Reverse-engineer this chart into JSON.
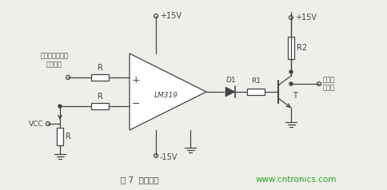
{
  "bg_color": "#f0eeea",
  "line_color": "#444444",
  "green_color": "#22aa22",
  "title": "图 7  过流保护",
  "website": "www.cntronics.com",
  "label_hall": "霏尔电流传感器\n采样信号",
  "label_vcc": "VCC",
  "label_lm319": "LM319",
  "label_plus15_top": "+15V",
  "label_minus15": "-15V",
  "label_plus15_tr": "+15V",
  "label_r_top": "R",
  "label_r_mid": "R",
  "label_r_bot": "R",
  "label_d1": "D1",
  "label_r1": "R1",
  "label_r2": "R2",
  "label_t": "T",
  "label_bus": "母线过\n流信号"
}
